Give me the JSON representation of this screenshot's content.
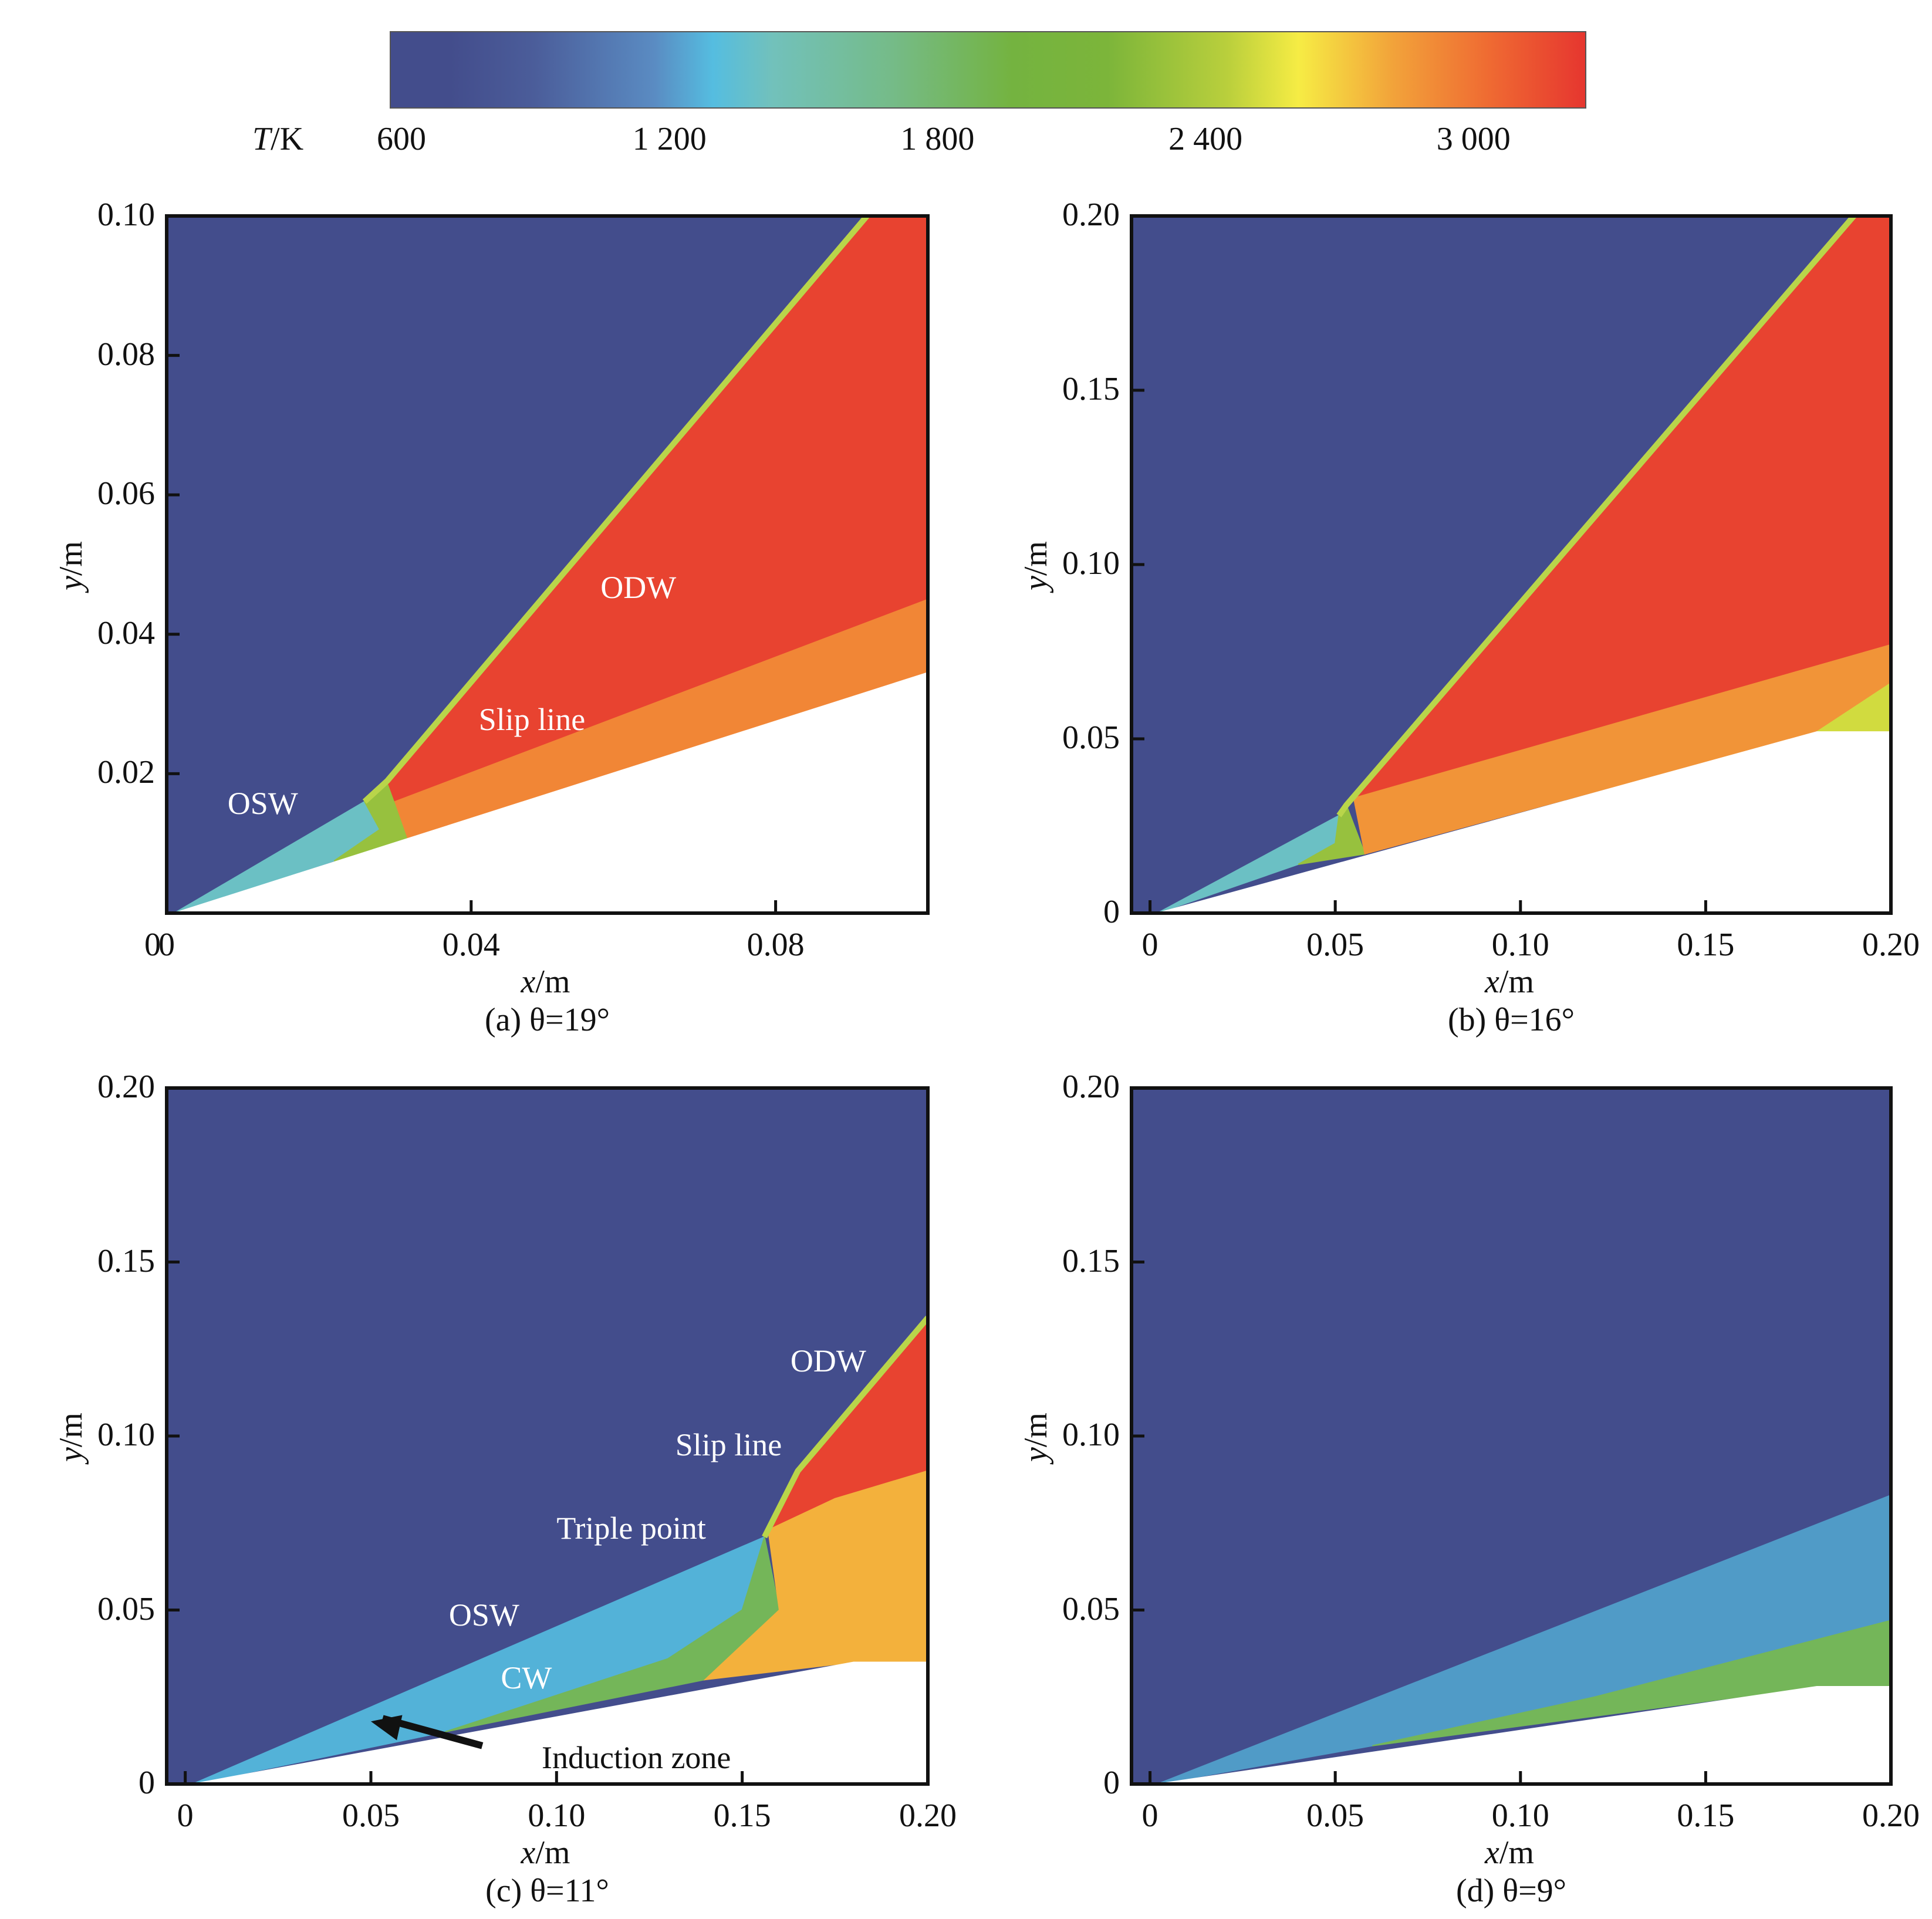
{
  "colorbar": {
    "title": "T/K",
    "ticks": [
      "600",
      "1 200",
      "1 800",
      "2 400",
      "3 000"
    ],
    "range": [
      600,
      3200
    ],
    "colors": [
      "#434d8c",
      "#55bde0",
      "#74b340",
      "#f6ec44",
      "#e6362f"
    ]
  },
  "chart_data": [
    {
      "type": "heatmap",
      "panel": "a",
      "caption": "(a) θ=19°",
      "theta_deg": 19,
      "xlabel": "x/m",
      "ylabel": "y/m",
      "xlim": [
        0,
        0.1
      ],
      "ylim": [
        0,
        0.1
      ],
      "xticks": [
        0,
        0.04,
        0.08
      ],
      "xtick_labels": [
        "0",
        "0.04",
        "0.08"
      ],
      "yticks": [
        0.02,
        0.04,
        0.06,
        0.08,
        0.1
      ],
      "ytick_labels": [
        "0.02",
        "0.04",
        "0.06",
        "0.08",
        "0.10"
      ],
      "annotations": [
        {
          "text": "OSW",
          "x": 0.008,
          "y": 0.015
        },
        {
          "text": "Slip line",
          "x": 0.041,
          "y": 0.027
        },
        {
          "text": "ODW",
          "x": 0.057,
          "y": 0.046
        }
      ],
      "regions": [
        {
          "name": "freestream",
          "T": 600,
          "poly": [
            [
              0,
              0
            ],
            [
              0.1,
              0
            ],
            [
              0.1,
              0.1
            ],
            [
              0,
              0.1
            ]
          ]
        },
        {
          "name": "osw-region",
          "T": 1250,
          "poly": [
            [
              0.001,
              0
            ],
            [
              0.026,
              0.016
            ],
            [
              0.028,
              0.012
            ],
            [
              0.022,
              0.0075
            ]
          ]
        },
        {
          "name": "transition",
          "T": 2000,
          "poly": [
            [
              0.022,
              0.0075
            ],
            [
              0.028,
              0.012
            ],
            [
              0.026,
              0.016
            ],
            [
              0.029,
              0.019
            ],
            [
              0.032,
              0.0098
            ]
          ]
        },
        {
          "name": "odw-region",
          "T": 3050,
          "poly": [
            [
              0.029,
              0.019
            ],
            [
              0.092,
              0.1
            ],
            [
              0.1,
              0.1
            ],
            [
              0.1,
              0.045
            ],
            [
              0.03,
              0.016
            ]
          ]
        },
        {
          "name": "slip-region",
          "T": 2800,
          "poly": [
            [
              0.03,
              0.016
            ],
            [
              0.1,
              0.045
            ],
            [
              0.1,
              0.0345
            ],
            [
              0.032,
              0.0098
            ]
          ]
        },
        {
          "name": "wedge",
          "T": null,
          "poly": [
            [
              0.001,
              0
            ],
            [
              0.1,
              0.0345
            ],
            [
              0.1,
              0
            ],
            [
              0,
              0
            ]
          ]
        }
      ],
      "front": [
        [
          0.001,
          0
        ],
        [
          0.026,
          0.016
        ],
        [
          0.029,
          0.019
        ],
        [
          0.092,
          0.1
        ]
      ]
    },
    {
      "type": "heatmap",
      "panel": "b",
      "caption": "(b) θ=16°",
      "theta_deg": 16,
      "xlabel": "x/m",
      "ylabel": "y/m",
      "xlim": [
        -0.005,
        0.2
      ],
      "ylim": [
        0,
        0.2
      ],
      "xticks": [
        0,
        0.05,
        0.1,
        0.15,
        0.2
      ],
      "xtick_labels": [
        "0",
        "0.05",
        "0.10",
        "0.15",
        "0.20"
      ],
      "yticks": [
        0,
        0.05,
        0.1,
        0.15,
        0.2
      ],
      "ytick_labels": [
        "0",
        "0.05",
        "0.10",
        "0.15",
        "0.20"
      ],
      "annotations": [],
      "regions": [
        {
          "name": "freestream",
          "T": 600,
          "poly": [
            [
              -0.005,
              0
            ],
            [
              0.2,
              0
            ],
            [
              0.2,
              0.2
            ],
            [
              -0.005,
              0.2
            ]
          ]
        },
        {
          "name": "osw-region",
          "T": 1250,
          "poly": [
            [
              0.002,
              0
            ],
            [
              0.051,
              0.028
            ],
            [
              0.05,
              0.02
            ],
            [
              0.04,
              0.014
            ]
          ]
        },
        {
          "name": "transition",
          "T": 2000,
          "poly": [
            [
              0.04,
              0.014
            ],
            [
              0.05,
              0.02
            ],
            [
              0.051,
              0.028
            ],
            [
              0.053,
              0.031
            ],
            [
              0.058,
              0.017
            ]
          ]
        },
        {
          "name": "odw-region",
          "T": 3050,
          "poly": [
            [
              0.053,
              0.031
            ],
            [
              0.19,
              0.2
            ],
            [
              0.2,
              0.2
            ],
            [
              0.2,
              0.077
            ],
            [
              0.055,
              0.033
            ]
          ]
        },
        {
          "name": "slip-region",
          "T": 2750,
          "poly": [
            [
              0.055,
              0.033
            ],
            [
              0.2,
              0.077
            ],
            [
              0.2,
              0.066
            ],
            [
              0.18,
              0.052
            ],
            [
              0.058,
              0.017
            ]
          ]
        },
        {
          "name": "expansion",
          "T": 2300,
          "poly": [
            [
              0.18,
              0.052
            ],
            [
              0.2,
              0.066
            ],
            [
              0.2,
              0.052
            ]
          ]
        },
        {
          "name": "wedge",
          "T": null,
          "poly": [
            [
              0.002,
              0
            ],
            [
              0.18,
              0.052
            ],
            [
              0.2,
              0.052
            ],
            [
              0.2,
              0
            ],
            [
              -0.005,
              0
            ]
          ]
        }
      ],
      "front": [
        [
          0.002,
          0
        ],
        [
          0.051,
          0.028
        ],
        [
          0.053,
          0.031
        ],
        [
          0.19,
          0.2
        ]
      ]
    },
    {
      "type": "heatmap",
      "panel": "c",
      "caption": "(c) θ=11°",
      "theta_deg": 11,
      "xlabel": "x/m",
      "ylabel": "y/m",
      "xlim": [
        -0.005,
        0.2
      ],
      "ylim": [
        0,
        0.2
      ],
      "xticks": [
        0,
        0.05,
        0.1,
        0.15,
        0.2
      ],
      "xtick_labels": [
        "0",
        "0.05",
        "0.10",
        "0.15",
        "0.20"
      ],
      "yticks": [
        0,
        0.05,
        0.1,
        0.15,
        0.2
      ],
      "ytick_labels": [
        "0",
        "0.05",
        "0.10",
        "0.15",
        "0.20"
      ],
      "annotations": [
        {
          "text": "OSW",
          "x": 0.071,
          "y": 0.047
        },
        {
          "text": "CW",
          "x": 0.085,
          "y": 0.029
        },
        {
          "text": "Induction zone",
          "x": 0.096,
          "y": 0.006
        },
        {
          "text": "Triple point",
          "x": 0.1,
          "y": 0.072
        },
        {
          "text": "Slip line",
          "x": 0.132,
          "y": 0.096
        },
        {
          "text": "ODW",
          "x": 0.163,
          "y": 0.12
        }
      ],
      "arrow": {
        "from": [
          0.08,
          0.011
        ],
        "to": [
          0.05,
          0.018
        ]
      },
      "regions": [
        {
          "name": "freestream",
          "T": 600,
          "poly": [
            [
              -0.005,
              0
            ],
            [
              0.2,
              0
            ],
            [
              0.2,
              0.2
            ],
            [
              -0.005,
              0.2
            ]
          ]
        },
        {
          "name": "osw-region",
          "T": 1050,
          "poly": [
            [
              0.002,
              0
            ],
            [
              0.156,
              0.071
            ],
            [
              0.15,
              0.05
            ],
            [
              0.13,
              0.036
            ],
            [
              0.07,
              0.015
            ]
          ]
        },
        {
          "name": "cw-region",
          "T": 1700,
          "poly": [
            [
              0.07,
              0.015
            ],
            [
              0.13,
              0.036
            ],
            [
              0.15,
              0.05
            ],
            [
              0.156,
              0.071
            ],
            [
              0.16,
              0.05
            ],
            [
              0.14,
              0.03
            ]
          ]
        },
        {
          "name": "odw-region",
          "T": 3050,
          "poly": [
            [
              0.157,
              0.073
            ],
            [
              0.165,
              0.09
            ],
            [
              0.2,
              0.134
            ],
            [
              0.2,
              0.09
            ],
            [
              0.175,
              0.082
            ]
          ]
        },
        {
          "name": "post-region",
          "T": 2650,
          "poly": [
            [
              0.157,
              0.073
            ],
            [
              0.175,
              0.082
            ],
            [
              0.2,
              0.09
            ],
            [
              0.2,
              0.035
            ],
            [
              0.18,
              0.035
            ],
            [
              0.14,
              0.03
            ],
            [
              0.16,
              0.05
            ]
          ]
        },
        {
          "name": "wedge",
          "T": null,
          "poly": [
            [
              0.002,
              0
            ],
            [
              0.18,
              0.035
            ],
            [
              0.2,
              0.035
            ],
            [
              0.2,
              0
            ],
            [
              -0.005,
              0
            ]
          ]
        }
      ],
      "front": [
        [
          0.002,
          0
        ],
        [
          0.156,
          0.071
        ],
        [
          0.165,
          0.09
        ],
        [
          0.2,
          0.134
        ]
      ]
    },
    {
      "type": "heatmap",
      "panel": "d",
      "caption": "(d) θ=9°",
      "theta_deg": 9,
      "xlabel": "x/m",
      "ylabel": "y/m",
      "xlim": [
        -0.005,
        0.2
      ],
      "ylim": [
        0,
        0.2
      ],
      "xticks": [
        0,
        0.05,
        0.1,
        0.15,
        0.2
      ],
      "xtick_labels": [
        "0",
        "0.05",
        "0.10",
        "0.15",
        "0.20"
      ],
      "yticks": [
        0,
        0.05,
        0.1,
        0.15,
        0.2
      ],
      "ytick_labels": [
        "0",
        "0.05",
        "0.10",
        "0.15",
        "0.20"
      ],
      "annotations": [],
      "regions": [
        {
          "name": "freestream",
          "T": 600,
          "poly": [
            [
              -0.005,
              0
            ],
            [
              0.2,
              0
            ],
            [
              0.2,
              0.2
            ],
            [
              -0.005,
              0.2
            ]
          ]
        },
        {
          "name": "osw-region",
          "T": 950,
          "poly": [
            [
              0.002,
              0
            ],
            [
              0.2,
              0.083
            ],
            [
              0.2,
              0.047
            ],
            [
              0.12,
              0.025
            ],
            [
              0.06,
              0.011
            ]
          ]
        },
        {
          "name": "cw-region",
          "T": 1700,
          "poly": [
            [
              0.06,
              0.011
            ],
            [
              0.12,
              0.025
            ],
            [
              0.2,
              0.047
            ],
            [
              0.2,
              0.028
            ],
            [
              0.18,
              0.028
            ]
          ]
        },
        {
          "name": "wedge",
          "T": null,
          "poly": [
            [
              0.002,
              0
            ],
            [
              0.18,
              0.028
            ],
            [
              0.2,
              0.028
            ],
            [
              0.2,
              0
            ],
            [
              -0.005,
              0
            ]
          ]
        }
      ],
      "front": [
        [
          0.002,
          0
        ],
        [
          0.2,
          0.083
        ]
      ]
    }
  ]
}
